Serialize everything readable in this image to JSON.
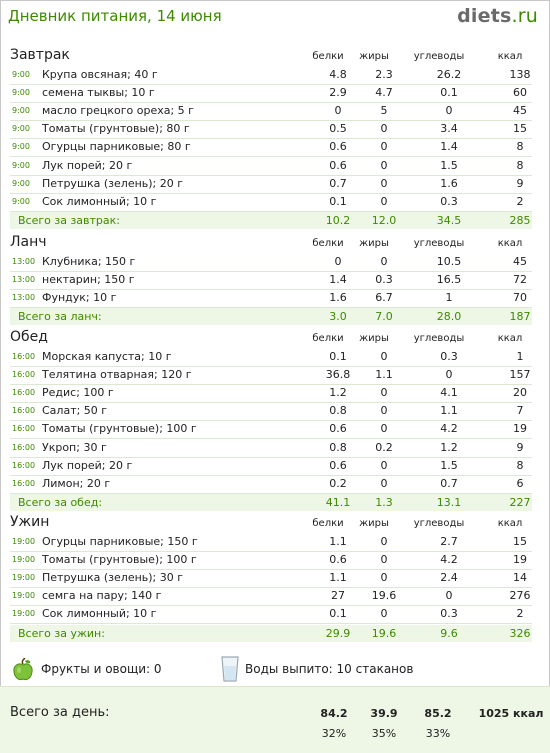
{
  "header": {
    "title": "Дневник питания, 14 июня",
    "logo_main": "diets",
    "logo_tld": ".ru"
  },
  "columns": {
    "protein": "белки",
    "fat": "жиры",
    "carbs": "углеводы",
    "kcal": "ккал"
  },
  "sections": [
    {
      "title": "Завтрак",
      "items": [
        {
          "time": "9:00",
          "name": "Крупа овсяная; 40 г",
          "protein": "4.8",
          "fat": "2.3",
          "carbs": "26.2",
          "kcal": "138"
        },
        {
          "time": "9:00",
          "name": "семена тыквы; 10 г",
          "protein": "2.9",
          "fat": "4.7",
          "carbs": "0.1",
          "kcal": "60"
        },
        {
          "time": "9:00",
          "name": "масло грецкого ореха; 5 г",
          "protein": "0",
          "fat": "5",
          "carbs": "0",
          "kcal": "45"
        },
        {
          "time": "9:00",
          "name": "Томаты (грунтовые); 80 г",
          "protein": "0.5",
          "fat": "0",
          "carbs": "3.4",
          "kcal": "15"
        },
        {
          "time": "9:00",
          "name": "Огурцы парниковые; 80 г",
          "protein": "0.6",
          "fat": "0",
          "carbs": "1.4",
          "kcal": "8"
        },
        {
          "time": "9:00",
          "name": "Лук порей; 20 г",
          "protein": "0.6",
          "fat": "0",
          "carbs": "1.5",
          "kcal": "8"
        },
        {
          "time": "9:00",
          "name": "Петрушка (зелень); 20 г",
          "protein": "0.7",
          "fat": "0",
          "carbs": "1.6",
          "kcal": "9"
        },
        {
          "time": "9:00",
          "name": "Сок лимонный; 10 г",
          "protein": "0.1",
          "fat": "0",
          "carbs": "0.3",
          "kcal": "2"
        }
      ],
      "total": {
        "label": "Всего за завтрак:",
        "protein": "10.2",
        "fat": "12.0",
        "carbs": "34.5",
        "kcal": "285"
      }
    },
    {
      "title": "Ланч",
      "items": [
        {
          "time": "13:00",
          "name": "Клубника; 150 г",
          "protein": "0",
          "fat": "0",
          "carbs": "10.5",
          "kcal": "45"
        },
        {
          "time": "13:00",
          "name": "нектарин; 150 г",
          "protein": "1.4",
          "fat": "0.3",
          "carbs": "16.5",
          "kcal": "72"
        },
        {
          "time": "13:00",
          "name": "Фундук; 10 г",
          "protein": "1.6",
          "fat": "6.7",
          "carbs": "1",
          "kcal": "70"
        }
      ],
      "total": {
        "label": "Всего за ланч:",
        "protein": "3.0",
        "fat": "7.0",
        "carbs": "28.0",
        "kcal": "187"
      }
    },
    {
      "title": "Обед",
      "items": [
        {
          "time": "16:00",
          "name": "Морская капуста; 10 г",
          "protein": "0.1",
          "fat": "0",
          "carbs": "0.3",
          "kcal": "1"
        },
        {
          "time": "16:00",
          "name": "Телятина отварная; 120 г",
          "protein": "36.8",
          "fat": "1.1",
          "carbs": "0",
          "kcal": "157"
        },
        {
          "time": "16:00",
          "name": "Редис; 100 г",
          "protein": "1.2",
          "fat": "0",
          "carbs": "4.1",
          "kcal": "20"
        },
        {
          "time": "16:00",
          "name": "Салат; 50 г",
          "protein": "0.8",
          "fat": "0",
          "carbs": "1.1",
          "kcal": "7"
        },
        {
          "time": "16:00",
          "name": "Томаты (грунтовые); 100 г",
          "protein": "0.6",
          "fat": "0",
          "carbs": "4.2",
          "kcal": "19"
        },
        {
          "time": "16:00",
          "name": "Укроп; 30 г",
          "protein": "0.8",
          "fat": "0.2",
          "carbs": "1.2",
          "kcal": "9"
        },
        {
          "time": "16:00",
          "name": "Лук порей; 20 г",
          "protein": "0.6",
          "fat": "0",
          "carbs": "1.5",
          "kcal": "8"
        },
        {
          "time": "16:00",
          "name": "Лимон; 20 г",
          "protein": "0.2",
          "fat": "0",
          "carbs": "0.7",
          "kcal": "6"
        }
      ],
      "total": {
        "label": "Всего за обед:",
        "protein": "41.1",
        "fat": "1.3",
        "carbs": "13.1",
        "kcal": "227"
      }
    },
    {
      "title": "Ужин",
      "items": [
        {
          "time": "19:00",
          "name": "Огурцы парниковые; 150 г",
          "protein": "1.1",
          "fat": "0",
          "carbs": "2.7",
          "kcal": "15"
        },
        {
          "time": "19:00",
          "name": "Томаты (грунтовые); 100 г",
          "protein": "0.6",
          "fat": "0",
          "carbs": "4.2",
          "kcal": "19"
        },
        {
          "time": "19:00",
          "name": "Петрушка (зелень); 30 г",
          "protein": "1.1",
          "fat": "0",
          "carbs": "2.4",
          "kcal": "14"
        },
        {
          "time": "19:00",
          "name": "семга на пару; 140 г",
          "protein": "27",
          "fat": "19.6",
          "carbs": "0",
          "kcal": "276"
        },
        {
          "time": "19:00",
          "name": "Сок лимонный; 10 г",
          "protein": "0.1",
          "fat": "0",
          "carbs": "0.3",
          "kcal": "2"
        }
      ],
      "total": {
        "label": "Всего за ужин:",
        "protein": "29.9",
        "fat": "19.6",
        "carbs": "9.6",
        "kcal": "326"
      }
    }
  ],
  "extras": {
    "fruits_label": "Фрукты и овощи: 0",
    "water_label": "Воды выпито: 10 стаканов",
    "icons": {
      "fruits": "apple-icon",
      "water": "glass-icon"
    }
  },
  "day_total": {
    "label": "Всего за день:",
    "protein": "84.2",
    "fat": "39.9",
    "carbs": "85.2",
    "kcal": "1025 ккал",
    "protein_pct": "32%",
    "fat_pct": "35%",
    "carbs_pct": "33%"
  },
  "colors": {
    "accent": "#3d8a00",
    "total_bg": "#eef6e6",
    "row_line": "#dde8d4"
  }
}
